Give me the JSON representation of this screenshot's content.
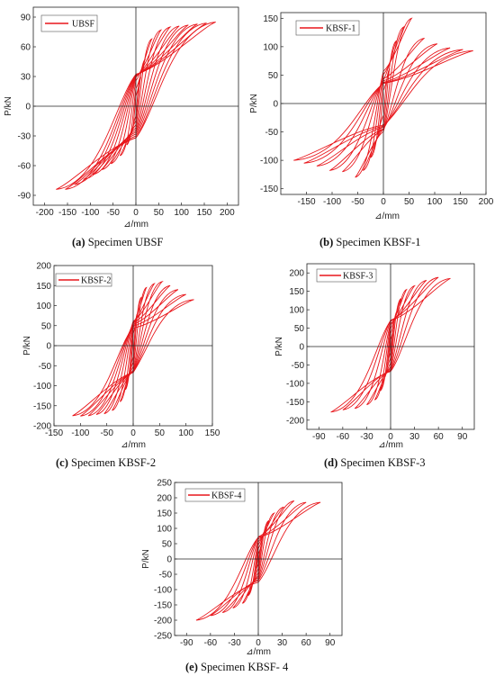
{
  "accent_color": "#e8161b",
  "captions": [
    {
      "letter": "(a)",
      "text": " Specimen UBSF"
    },
    {
      "letter": "(b)",
      "text": " Specimen KBSF-1"
    },
    {
      "letter": "(c)",
      "text": " Specimen KBSF-2"
    },
    {
      "letter": "(d)",
      "text": " Specimen KBSF-3"
    },
    {
      "letter": "(e)",
      "text": " Specimen KBSF- 4"
    }
  ],
  "chart_data": [
    {
      "type": "line",
      "legend": "UBSF",
      "legend_position": "top-left",
      "xlabel": "⊿/mm",
      "ylabel": "P/kN",
      "xlim": [
        -225,
        225
      ],
      "ylim": [
        -100,
        100
      ],
      "xticks": [
        -200,
        -150,
        -100,
        -50,
        0,
        50,
        100,
        150,
        200
      ],
      "yticks": [
        -90,
        -60,
        -30,
        0,
        30,
        60,
        90
      ],
      "grid": false,
      "loops": [
        {
          "amplitude": 10,
          "peak_pos": 28,
          "peak_neg": -27
        },
        {
          "amplitude": 20,
          "peak_pos": 47,
          "peak_neg": -39
        },
        {
          "amplitude": 35,
          "peak_pos": 68,
          "peak_neg": -50
        },
        {
          "amplitude": 55,
          "peak_pos": 77,
          "peak_neg": -58
        },
        {
          "amplitude": 75,
          "peak_pos": 80,
          "peak_neg": -64
        },
        {
          "amplitude": 95,
          "peak_pos": 81,
          "peak_neg": -69
        },
        {
          "amplitude": 115,
          "peak_pos": 82,
          "peak_neg": -74
        },
        {
          "amplitude": 135,
          "peak_pos": 83,
          "peak_neg": -79
        },
        {
          "amplitude": 155,
          "peak_pos": 84,
          "peak_neg": -84
        },
        {
          "amplitude": 175,
          "peak_pos": 85,
          "peak_neg": -84
        }
      ]
    },
    {
      "type": "line",
      "legend": "KBSF-1",
      "legend_position": "top-left",
      "xlabel": "⊿/mm",
      "ylabel": "P/kN",
      "xlim": [
        -200,
        200
      ],
      "ylim": [
        -160,
        160
      ],
      "xticks": [
        -150,
        -100,
        -50,
        0,
        50,
        100,
        150,
        200
      ],
      "yticks": [
        -150,
        -100,
        -50,
        0,
        50,
        100,
        150
      ],
      "grid": false,
      "loops": [
        {
          "amplitude": 12,
          "peak_pos": 60,
          "peak_neg": -55
        },
        {
          "amplitude": 25,
          "peak_pos": 110,
          "peak_neg": -95
        },
        {
          "amplitude": 40,
          "peak_pos": 135,
          "peak_neg": -118
        },
        {
          "amplitude": 55,
          "peak_pos": 150,
          "peak_neg": -130
        },
        {
          "amplitude": 80,
          "peak_pos": 115,
          "peak_neg": -120
        },
        {
          "amplitude": 105,
          "peak_pos": 105,
          "peak_neg": -118
        },
        {
          "amplitude": 130,
          "peak_pos": 98,
          "peak_neg": -110
        },
        {
          "amplitude": 155,
          "peak_pos": 95,
          "peak_neg": -105
        },
        {
          "amplitude": 175,
          "peak_pos": 93,
          "peak_neg": -100
        }
      ]
    },
    {
      "type": "line",
      "legend": "KBSF-2",
      "legend_position": "top-left",
      "xlabel": "⊿/mm",
      "ylabel": "P/kN",
      "xlim": [
        -150,
        150
      ],
      "ylim": [
        -200,
        200
      ],
      "xticks": [
        -150,
        -100,
        -50,
        0,
        50,
        100,
        150
      ],
      "yticks": [
        -200,
        -150,
        -100,
        -50,
        0,
        50,
        100,
        150,
        200
      ],
      "grid": false,
      "loops": [
        {
          "amplitude": 8,
          "peak_pos": 80,
          "peak_neg": -75
        },
        {
          "amplitude": 15,
          "peak_pos": 120,
          "peak_neg": -110
        },
        {
          "amplitude": 25,
          "peak_pos": 145,
          "peak_neg": -140
        },
        {
          "amplitude": 40,
          "peak_pos": 155,
          "peak_neg": -162
        },
        {
          "amplitude": 55,
          "peak_pos": 160,
          "peak_neg": -170
        },
        {
          "amplitude": 70,
          "peak_pos": 150,
          "peak_neg": -172
        },
        {
          "amplitude": 85,
          "peak_pos": 140,
          "peak_neg": -175
        },
        {
          "amplitude": 100,
          "peak_pos": 128,
          "peak_neg": -176
        },
        {
          "amplitude": 115,
          "peak_pos": 115,
          "peak_neg": -175
        }
      ]
    },
    {
      "type": "line",
      "legend": "KBSF-3",
      "legend_position": "top-left",
      "xlabel": "⊿/mm",
      "ylabel": "P/kN",
      "xlim": [
        -105,
        105
      ],
      "ylim": [
        -225,
        225
      ],
      "xticks": [
        -90,
        -60,
        -30,
        0,
        30,
        60,
        90
      ],
      "yticks": [
        -200,
        -150,
        -100,
        -50,
        0,
        50,
        100,
        150,
        200
      ],
      "grid": false,
      "loops": [
        {
          "amplitude": 4,
          "peak_pos": 50,
          "peak_neg": -45
        },
        {
          "amplitude": 8,
          "peak_pos": 95,
          "peak_neg": -85
        },
        {
          "amplitude": 13,
          "peak_pos": 130,
          "peak_neg": -120
        },
        {
          "amplitude": 20,
          "peak_pos": 155,
          "peak_neg": -145
        },
        {
          "amplitude": 30,
          "peak_pos": 165,
          "peak_neg": -158
        },
        {
          "amplitude": 45,
          "peak_pos": 180,
          "peak_neg": -168
        },
        {
          "amplitude": 60,
          "peak_pos": 188,
          "peak_neg": -172
        },
        {
          "amplitude": 75,
          "peak_pos": 185,
          "peak_neg": -178
        }
      ]
    },
    {
      "type": "line",
      "legend": "KBSF-4",
      "legend_position": "top-left",
      "xlabel": "⊿/mm",
      "ylabel": "P/kN",
      "xlim": [
        -105,
        105
      ],
      "ylim": [
        -250,
        250
      ],
      "xticks": [
        -90,
        -60,
        -30,
        0,
        30,
        60,
        90
      ],
      "yticks": [
        -250,
        -200,
        -150,
        -100,
        -50,
        0,
        50,
        100,
        150,
        200,
        250
      ],
      "grid": false,
      "loops": [
        {
          "amplitude": 4,
          "peak_pos": 45,
          "peak_neg": -45
        },
        {
          "amplitude": 8,
          "peak_pos": 90,
          "peak_neg": -85
        },
        {
          "amplitude": 13,
          "peak_pos": 125,
          "peak_neg": -120
        },
        {
          "amplitude": 20,
          "peak_pos": 150,
          "peak_neg": -145
        },
        {
          "amplitude": 32,
          "peak_pos": 170,
          "peak_neg": -160
        },
        {
          "amplitude": 45,
          "peak_pos": 190,
          "peak_neg": -175
        },
        {
          "amplitude": 60,
          "peak_pos": 185,
          "peak_neg": -185
        },
        {
          "amplitude": 78,
          "peak_pos": 185,
          "peak_neg": -200
        }
      ]
    }
  ]
}
